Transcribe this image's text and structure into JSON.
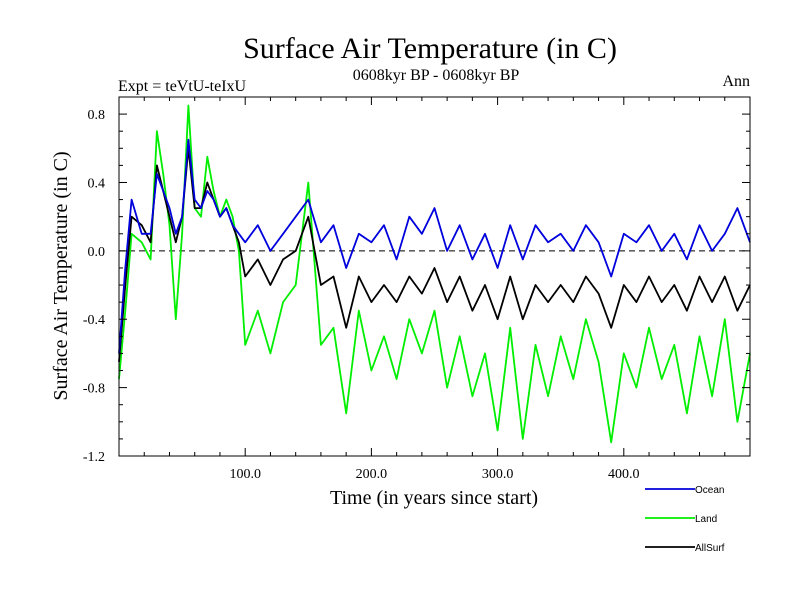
{
  "chart_data": {
    "type": "line",
    "title": "Surface Air Temperature (in C)",
    "subtitle": "0608kyr BP - 0608kyr BP",
    "left_label": "Expt = teVtU-teIxU",
    "right_label": "Ann",
    "xlabel": "Time (in years since start)",
    "ylabel": "Surface Air Temperature (in C)",
    "xlim": [
      0,
      500
    ],
    "ylim": [
      -1.2,
      0.9
    ],
    "x_ticks": [
      100,
      200,
      300,
      400
    ],
    "x_tick_labels": [
      "100.0",
      "200.0",
      "300.0",
      "400.0"
    ],
    "y_ticks": [
      0.8,
      0.4,
      0.0,
      -0.4,
      -0.8,
      -1.2
    ],
    "y_tick_labels": [
      "0.8",
      "0.4",
      "0.0",
      "-0.4",
      "-0.8",
      "-1.2"
    ],
    "zero_line": "dashed",
    "grid": false,
    "legend_position": "bottom-right",
    "series": [
      {
        "name": "Land",
        "color": "#00ee00",
        "x": [
          0,
          5,
          10,
          18,
          25,
          30,
          35,
          40,
          45,
          50,
          55,
          60,
          65,
          70,
          75,
          80,
          85,
          90,
          95,
          100,
          110,
          120,
          130,
          140,
          150,
          160,
          170,
          180,
          190,
          200,
          210,
          220,
          230,
          240,
          250,
          260,
          270,
          280,
          290,
          300,
          310,
          320,
          330,
          340,
          350,
          360,
          370,
          380,
          390,
          400,
          410,
          420,
          430,
          440,
          450,
          460,
          470,
          480,
          490,
          500
        ],
        "y": [
          -0.75,
          -0.35,
          0.1,
          0.05,
          -0.05,
          0.7,
          0.45,
          0.15,
          -0.4,
          0.1,
          0.85,
          0.25,
          0.2,
          0.55,
          0.35,
          0.2,
          0.3,
          0.2,
          0.0,
          -0.55,
          -0.35,
          -0.6,
          -0.3,
          -0.2,
          0.4,
          -0.55,
          -0.45,
          -0.95,
          -0.35,
          -0.7,
          -0.5,
          -0.75,
          -0.4,
          -0.6,
          -0.35,
          -0.8,
          -0.5,
          -0.85,
          -0.6,
          -1.05,
          -0.45,
          -1.1,
          -0.55,
          -0.85,
          -0.5,
          -0.75,
          -0.4,
          -0.65,
          -1.12,
          -0.6,
          -0.8,
          -0.45,
          -0.75,
          -0.55,
          -0.95,
          -0.5,
          -0.85,
          -0.4,
          -1.0,
          -0.6
        ]
      },
      {
        "name": "AllSurf",
        "color": "#000000",
        "x": [
          0,
          5,
          10,
          18,
          25,
          30,
          35,
          40,
          45,
          50,
          55,
          60,
          65,
          70,
          75,
          80,
          85,
          90,
          95,
          100,
          110,
          120,
          130,
          140,
          150,
          160,
          170,
          180,
          190,
          200,
          210,
          220,
          230,
          240,
          250,
          260,
          270,
          280,
          290,
          300,
          310,
          320,
          330,
          340,
          350,
          360,
          370,
          380,
          390,
          400,
          410,
          420,
          430,
          440,
          450,
          460,
          470,
          480,
          490,
          500
        ],
        "y": [
          -0.65,
          -0.2,
          0.2,
          0.15,
          0.05,
          0.5,
          0.35,
          0.2,
          0.05,
          0.2,
          0.6,
          0.25,
          0.25,
          0.4,
          0.3,
          0.2,
          0.25,
          0.15,
          0.05,
          -0.15,
          -0.05,
          -0.2,
          -0.05,
          0.0,
          0.2,
          -0.2,
          -0.15,
          -0.45,
          -0.15,
          -0.3,
          -0.2,
          -0.3,
          -0.15,
          -0.25,
          -0.1,
          -0.3,
          -0.15,
          -0.35,
          -0.2,
          -0.4,
          -0.15,
          -0.4,
          -0.2,
          -0.3,
          -0.2,
          -0.3,
          -0.15,
          -0.25,
          -0.45,
          -0.2,
          -0.3,
          -0.15,
          -0.3,
          -0.2,
          -0.35,
          -0.15,
          -0.3,
          -0.15,
          -0.35,
          -0.2
        ]
      },
      {
        "name": "Ocean",
        "color": "#0000dd",
        "x": [
          0,
          5,
          10,
          18,
          25,
          30,
          35,
          40,
          45,
          50,
          55,
          60,
          65,
          70,
          75,
          80,
          85,
          90,
          95,
          100,
          110,
          120,
          130,
          140,
          150,
          160,
          170,
          180,
          190,
          200,
          210,
          220,
          230,
          240,
          250,
          260,
          270,
          280,
          290,
          300,
          310,
          320,
          330,
          340,
          350,
          360,
          370,
          380,
          390,
          400,
          410,
          420,
          430,
          440,
          450,
          460,
          470,
          480,
          490,
          500
        ],
        "y": [
          -0.6,
          -0.1,
          0.3,
          0.1,
          0.1,
          0.45,
          0.35,
          0.25,
          0.1,
          0.2,
          0.65,
          0.3,
          0.25,
          0.35,
          0.3,
          0.2,
          0.25,
          0.15,
          0.1,
          0.05,
          0.15,
          0.0,
          0.1,
          0.2,
          0.3,
          0.05,
          0.15,
          -0.1,
          0.1,
          0.05,
          0.15,
          -0.05,
          0.2,
          0.1,
          0.25,
          0.0,
          0.15,
          -0.05,
          0.1,
          -0.1,
          0.15,
          -0.05,
          0.15,
          0.05,
          0.1,
          0.0,
          0.15,
          0.05,
          -0.15,
          0.1,
          0.05,
          0.15,
          0.0,
          0.1,
          -0.05,
          0.15,
          0.0,
          0.1,
          0.25,
          0.05
        ]
      }
    ]
  }
}
